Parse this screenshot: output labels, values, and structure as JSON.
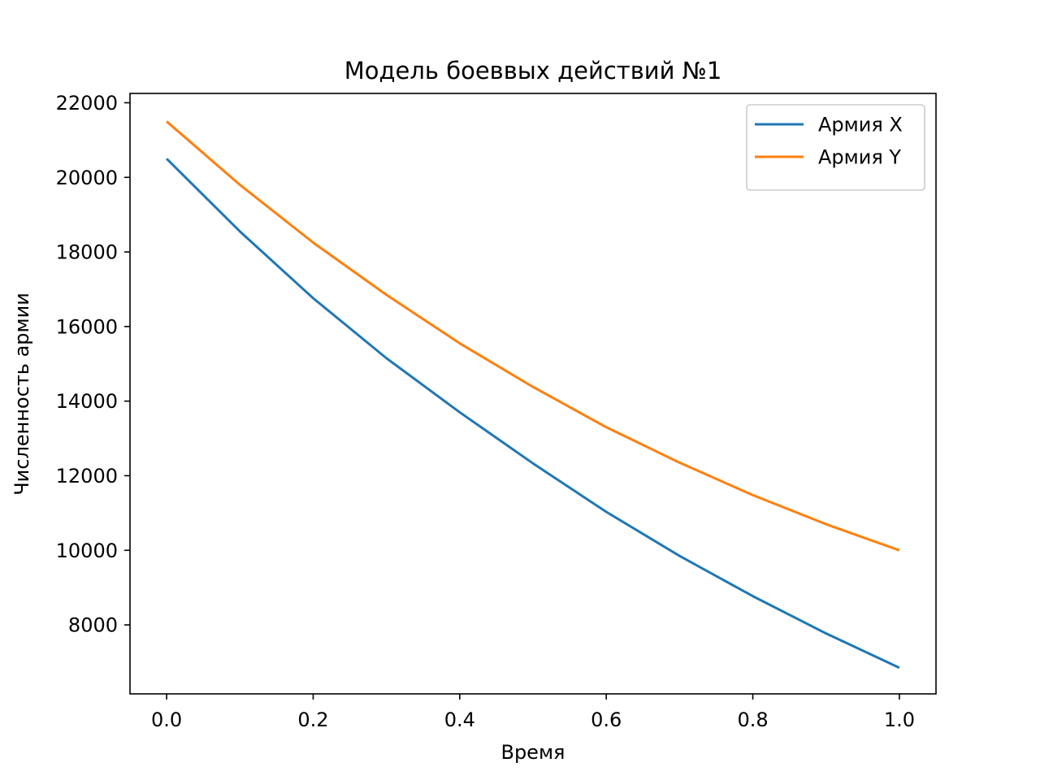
{
  "chart_data": {
    "type": "line",
    "title": "Модель боеввых действий №1",
    "xlabel": "Время",
    "ylabel": "Численность армии",
    "xlim": [
      -0.05,
      1.05
    ],
    "ylim": [
      6150,
      22250
    ],
    "xticks": [
      0.0,
      0.2,
      0.4,
      0.6,
      0.8,
      1.0
    ],
    "xtick_labels": [
      "0.0",
      "0.2",
      "0.4",
      "0.6",
      "0.8",
      "1.0"
    ],
    "yticks": [
      8000,
      10000,
      12000,
      14000,
      16000,
      18000,
      20000,
      22000
    ],
    "ytick_labels": [
      "8000",
      "10000",
      "12000",
      "14000",
      "16000",
      "18000",
      "20000",
      "22000"
    ],
    "grid": false,
    "legend_position": "top-right",
    "series": [
      {
        "name": "Армия X",
        "color": "#1f77b4",
        "x": [
          0.0,
          0.1,
          0.2,
          0.3,
          0.4,
          0.5,
          0.6,
          0.7,
          0.8,
          0.9,
          1.0
        ],
        "y": [
          20500,
          18550,
          16760,
          15150,
          13700,
          12330,
          11030,
          9850,
          8770,
          7770,
          6850
        ]
      },
      {
        "name": "Армия Y",
        "color": "#ff7f0e",
        "x": [
          0.0,
          0.1,
          0.2,
          0.3,
          0.4,
          0.5,
          0.6,
          0.7,
          0.8,
          0.9,
          1.0
        ],
        "y": [
          21500,
          19800,
          18250,
          16850,
          15550,
          14380,
          13300,
          12350,
          11480,
          10700,
          10000
        ]
      }
    ]
  }
}
